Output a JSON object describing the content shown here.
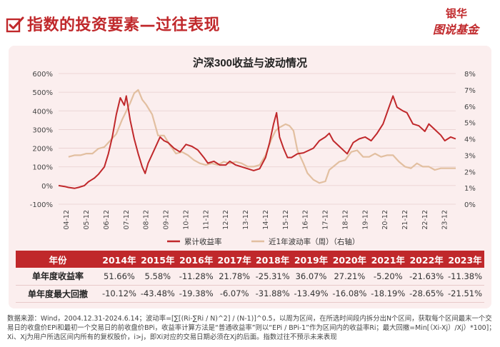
{
  "header": {
    "title": "指数的投资要素—过往表现",
    "logo_top": "银华",
    "logo_bottom": "图说基金"
  },
  "colors": {
    "accent": "#c0282b",
    "return_line": "#c0282b",
    "volatility_line": "#e2bfa0",
    "panel_bg": "#fbeeee"
  },
  "chart_data": {
    "type": "line",
    "title": "沪深300收益与波动情况",
    "x_ticks": [
      "04-12",
      "05-12",
      "06-12",
      "07-12",
      "08-12",
      "09-12",
      "10-12",
      "11-12",
      "12-12",
      "13-12",
      "14-12",
      "15-12",
      "16-12",
      "17-12",
      "18-12",
      "19-12",
      "20-12",
      "21-12",
      "22-12",
      "23-12"
    ],
    "y_left_ticks": [
      "600%",
      "500%",
      "400%",
      "300%",
      "200%",
      "100%",
      "0%",
      "-100%"
    ],
    "y_right_ticks": [
      "8%",
      "7%",
      "6%",
      "5%",
      "4%",
      "3%",
      "2%",
      "1%",
      "0%"
    ],
    "ylim_left": [
      -100,
      600
    ],
    "ylim_right": [
      0,
      8
    ],
    "legend_position": "bottom",
    "series": [
      {
        "name": "累计收益率",
        "axis": "left",
        "points": [
          [
            2004.5,
            0
          ],
          [
            2004.8,
            -5
          ],
          [
            2005.0,
            -10
          ],
          [
            2005.3,
            -15
          ],
          [
            2005.5,
            -10
          ],
          [
            2005.8,
            0
          ],
          [
            2006.0,
            20
          ],
          [
            2006.3,
            40
          ],
          [
            2006.5,
            60
          ],
          [
            2006.8,
            100
          ],
          [
            2007.0,
            170
          ],
          [
            2007.2,
            260
          ],
          [
            2007.4,
            380
          ],
          [
            2007.6,
            470
          ],
          [
            2007.8,
            430
          ],
          [
            2007.9,
            480
          ],
          [
            2008.1,
            350
          ],
          [
            2008.3,
            250
          ],
          [
            2008.5,
            170
          ],
          [
            2008.7,
            100
          ],
          [
            2008.85,
            65
          ],
          [
            2009.0,
            120
          ],
          [
            2009.3,
            190
          ],
          [
            2009.6,
            260
          ],
          [
            2009.8,
            240
          ],
          [
            2010.0,
            230
          ],
          [
            2010.3,
            200
          ],
          [
            2010.6,
            180
          ],
          [
            2010.9,
            220
          ],
          [
            2011.2,
            210
          ],
          [
            2011.5,
            190
          ],
          [
            2011.8,
            150
          ],
          [
            2012.0,
            120
          ],
          [
            2012.3,
            130
          ],
          [
            2012.6,
            110
          ],
          [
            2012.9,
            110
          ],
          [
            2013.1,
            130
          ],
          [
            2013.4,
            110
          ],
          [
            2013.7,
            100
          ],
          [
            2014.0,
            90
          ],
          [
            2014.3,
            80
          ],
          [
            2014.6,
            90
          ],
          [
            2014.9,
            150
          ],
          [
            2015.1,
            230
          ],
          [
            2015.3,
            330
          ],
          [
            2015.45,
            390
          ],
          [
            2015.6,
            260
          ],
          [
            2015.8,
            200
          ],
          [
            2016.0,
            150
          ],
          [
            2016.2,
            150
          ],
          [
            2016.5,
            170
          ],
          [
            2016.8,
            175
          ],
          [
            2017.0,
            185
          ],
          [
            2017.3,
            200
          ],
          [
            2017.6,
            240
          ],
          [
            2017.9,
            260
          ],
          [
            2018.1,
            280
          ],
          [
            2018.3,
            240
          ],
          [
            2018.6,
            210
          ],
          [
            2018.9,
            180
          ],
          [
            2019.0,
            170
          ],
          [
            2019.3,
            230
          ],
          [
            2019.6,
            250
          ],
          [
            2019.9,
            260
          ],
          [
            2020.2,
            240
          ],
          [
            2020.5,
            280
          ],
          [
            2020.8,
            330
          ],
          [
            2021.1,
            420
          ],
          [
            2021.3,
            480
          ],
          [
            2021.5,
            420
          ],
          [
            2021.8,
            400
          ],
          [
            2022.0,
            390
          ],
          [
            2022.3,
            330
          ],
          [
            2022.6,
            320
          ],
          [
            2022.9,
            290
          ],
          [
            2023.1,
            330
          ],
          [
            2023.4,
            300
          ],
          [
            2023.7,
            270
          ],
          [
            2023.9,
            240
          ],
          [
            2024.2,
            260
          ],
          [
            2024.45,
            250
          ]
        ]
      },
      {
        "name": "近1年波动率（周）（右轴）",
        "axis": "right",
        "points": [
          [
            2005.0,
            2.9
          ],
          [
            2005.3,
            3.0
          ],
          [
            2005.6,
            3.0
          ],
          [
            2005.9,
            3.1
          ],
          [
            2006.2,
            3.1
          ],
          [
            2006.5,
            3.4
          ],
          [
            2006.8,
            3.5
          ],
          [
            2007.1,
            3.9
          ],
          [
            2007.4,
            4.3
          ],
          [
            2007.7,
            5.2
          ],
          [
            2007.9,
            5.7
          ],
          [
            2008.1,
            6.2
          ],
          [
            2008.3,
            6.8
          ],
          [
            2008.5,
            7.0
          ],
          [
            2008.7,
            6.4
          ],
          [
            2008.9,
            6.1
          ],
          [
            2009.2,
            5.5
          ],
          [
            2009.5,
            4.2
          ],
          [
            2009.8,
            4.2
          ],
          [
            2010.1,
            3.6
          ],
          [
            2010.4,
            3.1
          ],
          [
            2010.7,
            3.2
          ],
          [
            2011.0,
            3.0
          ],
          [
            2011.3,
            2.7
          ],
          [
            2011.6,
            2.5
          ],
          [
            2011.9,
            2.4
          ],
          [
            2012.2,
            2.5
          ],
          [
            2012.5,
            2.4
          ],
          [
            2012.8,
            2.6
          ],
          [
            2013.1,
            2.5
          ],
          [
            2013.4,
            2.6
          ],
          [
            2013.7,
            2.5
          ],
          [
            2014.0,
            2.3
          ],
          [
            2014.3,
            2.3
          ],
          [
            2014.6,
            2.4
          ],
          [
            2014.9,
            3.0
          ],
          [
            2015.2,
            4.0
          ],
          [
            2015.4,
            4.5
          ],
          [
            2015.6,
            4.7
          ],
          [
            2015.9,
            4.9
          ],
          [
            2016.1,
            4.8
          ],
          [
            2016.3,
            4.5
          ],
          [
            2016.5,
            3.3
          ],
          [
            2016.8,
            2.5
          ],
          [
            2017.0,
            1.9
          ],
          [
            2017.3,
            1.5
          ],
          [
            2017.6,
            1.3
          ],
          [
            2017.9,
            1.4
          ],
          [
            2018.1,
            2.1
          ],
          [
            2018.3,
            2.3
          ],
          [
            2018.6,
            2.6
          ],
          [
            2018.9,
            2.7
          ],
          [
            2019.2,
            3.2
          ],
          [
            2019.5,
            3.3
          ],
          [
            2019.8,
            2.9
          ],
          [
            2020.1,
            2.9
          ],
          [
            2020.4,
            3.1
          ],
          [
            2020.7,
            2.9
          ],
          [
            2021.0,
            3.0
          ],
          [
            2021.3,
            3.0
          ],
          [
            2021.6,
            2.6
          ],
          [
            2021.9,
            2.3
          ],
          [
            2022.2,
            2.2
          ],
          [
            2022.5,
            2.5
          ],
          [
            2022.8,
            2.3
          ],
          [
            2023.1,
            2.3
          ],
          [
            2023.4,
            2.1
          ],
          [
            2023.7,
            2.2
          ],
          [
            2024.0,
            2.2
          ],
          [
            2024.45,
            2.2
          ]
        ]
      }
    ]
  },
  "table": {
    "header_label": "年份",
    "years": [
      "2014年",
      "2015年",
      "2016年",
      "2017年",
      "2018年",
      "2019年",
      "2020年",
      "2021年",
      "2022年",
      "2023年"
    ],
    "rows": [
      {
        "label": "单年度收益率",
        "values": [
          "51.66%",
          "5.58%",
          "-11.28%",
          "21.78%",
          "-25.31%",
          "36.07%",
          "27.21%",
          "-5.20%",
          "-21.63%",
          "-11.38%"
        ]
      },
      {
        "label": "单年度最大回撤",
        "values": [
          "-10.12%",
          "-43.48%",
          "-19.38%",
          "-6.07%",
          "-31.88%",
          "-13.49%",
          "-16.08%",
          "-18.19%",
          "-28.65%",
          "-21.51%"
        ]
      }
    ]
  },
  "footnote": "数据来源：Wind，2004.12.31-2024.6.14；波动率=[∑[(Ri-∑Ri / N)^2] / (N-1)]^0.5，以周为区间，在所选时间段内拆分出N个区间，获取每个区间最末一个交易日的收盘价EPi和最初一个交易日的前收盘价BPi，收益率计算方法是“普通收益率”则以“EPi / BPi-1”作为区间内的收益率Ri；最大回撤=Min[（Xi-Xj）/Xj）*100]；Xi、Xj为用户所选区间内所有的复权股价，i>j，即Xi对应的交易日期必须在Xj的后面。指数过往不预示未来表现"
}
